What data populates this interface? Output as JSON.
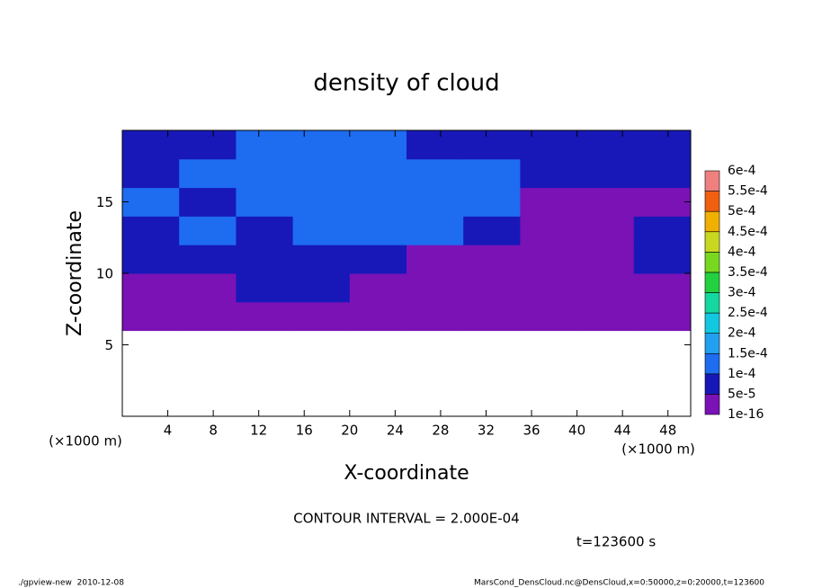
{
  "chart_data": {
    "type": "heatmap",
    "title": "density of cloud",
    "x_label": "X-coordinate",
    "y_label": "Z-coordinate",
    "x_unit": "(×1000 m)",
    "y_unit": "(×1000 m)",
    "xlim": [
      0,
      50
    ],
    "ylim": [
      0,
      20
    ],
    "xticks": [
      4,
      8,
      12,
      16,
      20,
      24,
      28,
      32,
      36,
      40,
      44,
      48
    ],
    "yticks": [
      5,
      10,
      15
    ],
    "x_bins": [
      0,
      5,
      10,
      15,
      20,
      25,
      30,
      35,
      40,
      45,
      50
    ],
    "z_bins": [
      0,
      2,
      4,
      6,
      8,
      10,
      12,
      14,
      16,
      18,
      20
    ],
    "values": [
      [
        null,
        null,
        null,
        null,
        null,
        null,
        null,
        null,
        null,
        null
      ],
      [
        null,
        null,
        null,
        null,
        null,
        null,
        null,
        null,
        null,
        null
      ],
      [
        null,
        null,
        null,
        null,
        null,
        null,
        null,
        null,
        null,
        null
      ],
      [
        2e-05,
        2e-05,
        2e-05,
        2e-05,
        2e-05,
        2e-05,
        2e-05,
        2e-05,
        2e-05,
        2e-05
      ],
      [
        2e-05,
        2e-05,
        7e-05,
        7e-05,
        2e-05,
        2e-05,
        2e-05,
        2e-05,
        2e-05,
        2e-05
      ],
      [
        7e-05,
        7e-05,
        7e-05,
        7e-05,
        7e-05,
        2e-05,
        2e-05,
        2e-05,
        2e-05,
        7e-05
      ],
      [
        7e-05,
        0.00012,
        7e-05,
        0.00012,
        0.00012,
        0.00012,
        7e-05,
        2e-05,
        2e-05,
        7e-05
      ],
      [
        0.00012,
        7e-05,
        0.00012,
        0.00012,
        0.00014,
        0.00014,
        0.00012,
        2e-05,
        2e-05,
        2e-05
      ],
      [
        7e-05,
        0.00012,
        0.00012,
        0.00014,
        0.00014,
        0.00012,
        0.00012,
        7e-05,
        7e-05,
        7e-05
      ],
      [
        7e-05,
        7e-05,
        0.00012,
        0.00012,
        0.00012,
        7e-05,
        7e-05,
        7e-05,
        7e-05,
        7e-05
      ]
    ],
    "levels": [
      {
        "value": 1e-16,
        "label": "1e-16"
      },
      {
        "value": 5e-05,
        "label": "5e-5"
      },
      {
        "value": 0.0001,
        "label": "1e-4"
      },
      {
        "value": 0.00015,
        "label": "1.5e-4"
      },
      {
        "value": 0.0002,
        "label": "2e-4"
      },
      {
        "value": 0.00025,
        "label": "2.5e-4"
      },
      {
        "value": 0.0003,
        "label": "3e-4"
      },
      {
        "value": 0.00035,
        "label": "3.5e-4"
      },
      {
        "value": 0.0004,
        "label": "4e-4"
      },
      {
        "value": 0.00045,
        "label": "4.5e-4"
      },
      {
        "value": 0.0005,
        "label": "5e-4"
      },
      {
        "value": 0.00055,
        "label": "5.5e-4"
      },
      {
        "value": 0.0006,
        "label": "6e-4"
      }
    ],
    "colors": [
      "#7a12b6",
      "#1818b8",
      "#1e6cf0",
      "#22a0f0",
      "#12c8e0",
      "#14d8a0",
      "#22d040",
      "#78d820",
      "#c8d820",
      "#f0b000",
      "#f06010",
      "#f08080"
    ],
    "contour_note": "CONTOUR INTERVAL = 2.000E-04",
    "time_note": "t=123600 s",
    "footer_left": "./gpview-new  2010-12-08",
    "footer_right": "MarsCond_DensCloud.nc@DensCloud,x=0:50000,z=0:20000,t=123600"
  }
}
